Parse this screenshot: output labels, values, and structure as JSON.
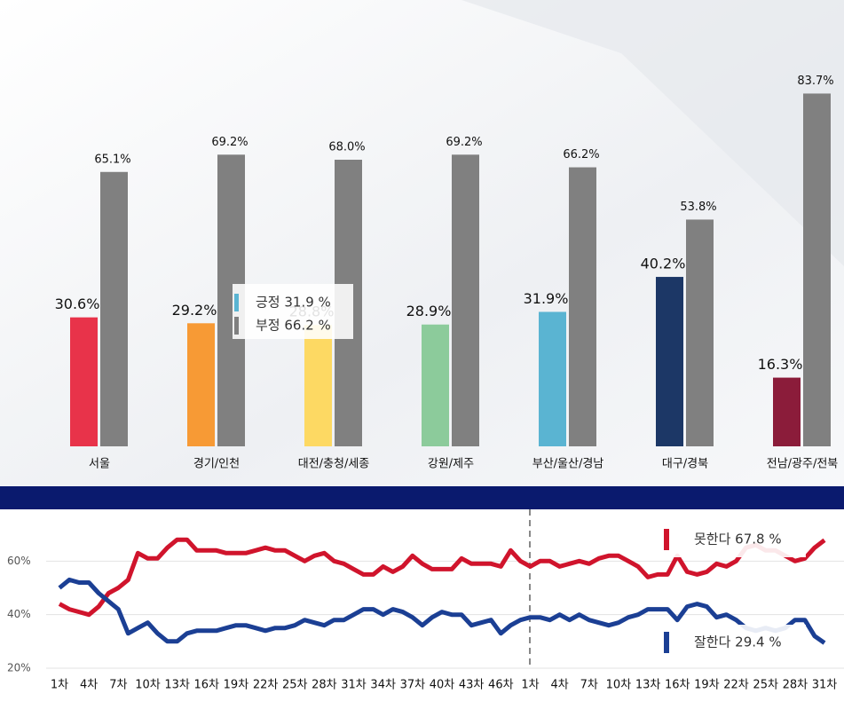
{
  "chart_data": [
    {
      "type": "bar",
      "categories": [
        "서울",
        "경기/인천",
        "대전/충청/세종",
        "강원/제주",
        "부산/울산/경남",
        "대구/경북",
        "전남/광주/전북"
      ],
      "series": [
        {
          "colors": [
            "#e8334a",
            "#f79a35",
            "#fdd963",
            "#8ccb9b",
            "#5ab4d2",
            "#1c3766",
            "#8b1c3a"
          ],
          "values": [
            30.6,
            29.2,
            28.8,
            28.9,
            31.9,
            40.2,
            16.3
          ],
          "value_labels": [
            "30.6%",
            "29.2%",
            "28.8%",
            "28.9%",
            "31.9%",
            "40.2%",
            "16.3%"
          ]
        },
        {
          "color": "#808080",
          "values": [
            65.1,
            69.2,
            68.0,
            69.2,
            66.2,
            53.8,
            83.7
          ],
          "value_labels": [
            "65.1%",
            "69.2%",
            "68.0%",
            "69.2%",
            "66.2%",
            "53.8%",
            "83.7%"
          ]
        }
      ],
      "ylim": [
        0,
        100
      ],
      "annotations": [
        {
          "text": "긍정 31.9 %",
          "color": "#5ab4d2"
        },
        {
          "text": "부정 66.2 %",
          "color": "#808080"
        }
      ]
    },
    {
      "type": "line",
      "categories": [
        "1차",
        null,
        null,
        "4차",
        null,
        null,
        "7차",
        null,
        null,
        "10차",
        null,
        null,
        "13차",
        null,
        null,
        "16차",
        null,
        null,
        "19차",
        null,
        null,
        "22차",
        null,
        null,
        "25차",
        null,
        null,
        "28차",
        null,
        null,
        "31차",
        null,
        null,
        "34차",
        null,
        null,
        "37차",
        null,
        null,
        "40차",
        null,
        null,
        "43차",
        null,
        null,
        "46차",
        null,
        null,
        "1차",
        null,
        null,
        "4차",
        null,
        null,
        "7차",
        null,
        null,
        "10차",
        null,
        null,
        "13차",
        null,
        null,
        "16차",
        null,
        null,
        "19차",
        null,
        null,
        "22차",
        null,
        null,
        "25차",
        null,
        null,
        "28차",
        null,
        null,
        "31차"
      ],
      "series": [
        {
          "label": "못한다 67.8 %",
          "color": "#d0142c",
          "values": [
            44,
            42,
            41,
            40,
            43,
            48,
            50,
            53,
            63,
            61,
            61,
            65,
            68,
            68,
            64,
            64,
            64,
            63,
            63,
            63,
            64,
            65,
            64,
            64,
            62,
            60,
            62,
            63,
            60,
            59,
            57,
            55,
            55,
            58,
            56,
            58,
            62,
            59,
            57,
            57,
            57,
            61,
            59,
            59,
            59,
            58,
            64,
            60,
            58,
            60,
            60,
            58,
            59,
            60,
            59,
            61,
            62,
            62,
            60,
            58,
            54,
            55,
            55,
            62,
            56,
            55,
            56,
            59,
            58,
            60,
            65,
            66,
            64,
            64,
            62,
            60,
            61,
            65,
            67.8
          ]
        },
        {
          "label": "잘한다 29.4 %",
          "color": "#1b3f94",
          "values": [
            50,
            53,
            52,
            52,
            48,
            45,
            42,
            33,
            35,
            37,
            33,
            30,
            30,
            33,
            34,
            34,
            34,
            35,
            36,
            36,
            35,
            34,
            35,
            35,
            36,
            38,
            37,
            36,
            38,
            38,
            40,
            42,
            42,
            40,
            42,
            41,
            39,
            36,
            39,
            41,
            40,
            40,
            36,
            37,
            38,
            33,
            36,
            38,
            39,
            39,
            38,
            40,
            38,
            40,
            38,
            37,
            36,
            37,
            39,
            40,
            42,
            42,
            42,
            38,
            43,
            44,
            43,
            39,
            40,
            38,
            35,
            34,
            35,
            34,
            35,
            38,
            38,
            32,
            29.4
          ]
        }
      ],
      "ylim": [
        20,
        79
      ],
      "yticks": [
        {
          "value": 20,
          "label": "20%"
        },
        {
          "value": 40,
          "label": "40%"
        },
        {
          "value": 60,
          "label": "60%"
        }
      ]
    }
  ]
}
